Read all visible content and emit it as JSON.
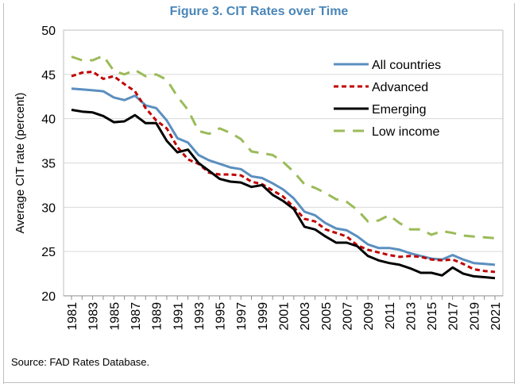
{
  "figure": {
    "title": "Figure 3. CIT Rates over Time",
    "source": "Source: FAD Rates Database."
  },
  "chart_data": {
    "type": "line",
    "title": "Figure 3. CIT Rates over Time",
    "xlabel": "",
    "ylabel": "Average CIT rate (percent)",
    "ylim": [
      20,
      50
    ],
    "yticks": [
      20,
      25,
      30,
      35,
      40,
      45,
      50
    ],
    "x": [
      1981,
      1982,
      1983,
      1984,
      1985,
      1986,
      1987,
      1988,
      1989,
      1990,
      1991,
      1992,
      1993,
      1994,
      1995,
      1996,
      1997,
      1998,
      1999,
      2000,
      2001,
      2002,
      2003,
      2004,
      2005,
      2006,
      2007,
      2008,
      2009,
      2010,
      2011,
      2012,
      2013,
      2014,
      2015,
      2016,
      2017,
      2018,
      2019,
      2020,
      2021
    ],
    "xticks": [
      1981,
      1983,
      1985,
      1987,
      1989,
      1991,
      1993,
      1995,
      1997,
      1999,
      2001,
      2003,
      2005,
      2007,
      2009,
      2011,
      2013,
      2015,
      2017,
      2019,
      2021
    ],
    "grid": "horizontal",
    "legend_position": "top-right",
    "series": [
      {
        "name": "All countries",
        "color": "#5b8fbf",
        "style": "solid",
        "values": [
          43.4,
          43.3,
          43.2,
          43.1,
          42.4,
          42.1,
          42.6,
          41.5,
          41.2,
          39.8,
          37.8,
          37.3,
          35.9,
          35.3,
          34.9,
          34.5,
          34.3,
          33.5,
          33.3,
          32.7,
          32.0,
          31.0,
          29.5,
          29.1,
          28.2,
          27.6,
          27.4,
          26.7,
          25.8,
          25.4,
          25.4,
          25.2,
          24.8,
          24.5,
          24.2,
          24.1,
          24.6,
          24.1,
          23.7,
          23.6,
          23.5
        ]
      },
      {
        "name": "Advanced",
        "color": "#c00000",
        "style": "dashed",
        "values": [
          44.8,
          45.2,
          45.3,
          44.5,
          44.8,
          43.9,
          43.1,
          41.2,
          39.8,
          38.9,
          36.8,
          35.4,
          34.9,
          33.9,
          33.7,
          33.7,
          33.6,
          32.9,
          32.6,
          31.9,
          31.2,
          30.0,
          28.7,
          28.4,
          27.5,
          27.1,
          26.7,
          25.7,
          25.2,
          24.9,
          24.6,
          24.4,
          24.5,
          24.4,
          24.1,
          24.0,
          24.1,
          23.6,
          23.0,
          22.8,
          22.7
        ]
      },
      {
        "name": "Emerging",
        "color": "#000000",
        "style": "solid",
        "values": [
          41.0,
          40.8,
          40.7,
          40.3,
          39.6,
          39.7,
          40.4,
          39.5,
          39.5,
          37.5,
          36.2,
          36.5,
          35.0,
          34.1,
          33.2,
          32.9,
          32.8,
          32.3,
          32.5,
          31.4,
          30.7,
          29.8,
          27.8,
          27.5,
          26.7,
          26.0,
          26.0,
          25.6,
          24.5,
          24.0,
          23.7,
          23.5,
          23.1,
          22.6,
          22.6,
          22.3,
          23.2,
          22.5,
          22.2,
          22.1,
          22.0
        ]
      },
      {
        "name": "Low income",
        "color": "#9bbb59",
        "style": "dashed",
        "values": [
          47.0,
          46.6,
          46.6,
          47.1,
          45.4,
          45.0,
          45.5,
          44.8,
          45.0,
          44.4,
          42.5,
          41.0,
          38.6,
          38.3,
          38.9,
          38.4,
          37.7,
          36.3,
          36.1,
          35.9,
          35.1,
          34.0,
          32.6,
          32.2,
          31.6,
          30.9,
          30.6,
          29.7,
          28.4,
          28.5,
          29.1,
          28.2,
          27.5,
          27.5,
          26.9,
          27.3,
          27.1,
          26.8,
          26.7,
          26.6,
          26.5
        ]
      }
    ]
  }
}
